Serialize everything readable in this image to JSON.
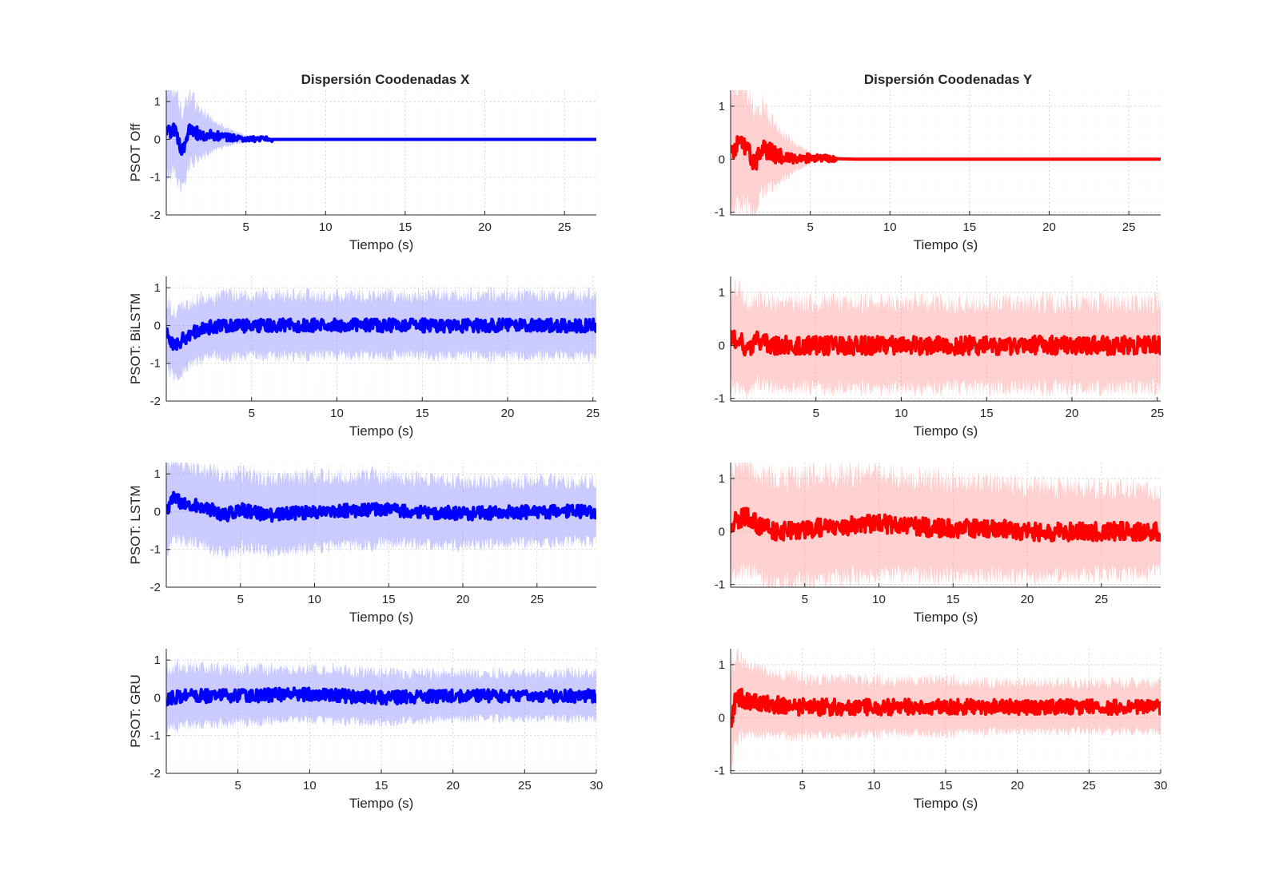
{
  "figure": {
    "column_titles": [
      "Dispersión Coodenadas X",
      "Dispersión Coodenadas Y"
    ],
    "colors": {
      "x": "#0000ff",
      "y": "#ff0000",
      "band_x": "#8c8cff",
      "band_y": "#ff9a9a"
    }
  },
  "chart_data": [
    {
      "type": "line",
      "title": "Dispersión Coodenadas X",
      "xlabel": "Tiempo (s)",
      "ylabel": "PSOT Off",
      "xlim": [
        0,
        27
      ],
      "ylim": [
        -2,
        1.3
      ],
      "xticks": [
        5,
        10,
        15,
        20,
        25
      ],
      "yticks": [
        -2,
        -1,
        0,
        1
      ],
      "grid": "on (major and minor)",
      "color": "#0000ff",
      "series": [
        {
          "role": "mean",
          "x": [
            0,
            0.5,
            1,
            1.5,
            2,
            3,
            4,
            5,
            6,
            8,
            27
          ],
          "y": [
            0.2,
            0.25,
            -0.3,
            0.3,
            0.15,
            0.1,
            0.05,
            0.02,
            0,
            0,
            0
          ]
        },
        {
          "role": "band_halfwidth",
          "x": [
            0,
            1,
            2,
            3,
            4,
            5,
            6,
            8,
            27
          ],
          "y": [
            1.2,
            1.1,
            0.7,
            0.4,
            0.2,
            0.08,
            0.03,
            0,
            0
          ]
        }
      ]
    },
    {
      "type": "line",
      "title": "Dispersión Coodenadas Y",
      "xlabel": "Tiempo (s)",
      "ylabel": "",
      "xlim": [
        0,
        27
      ],
      "ylim": [
        -1.05,
        1.3
      ],
      "xticks": [
        5,
        10,
        15,
        20,
        25
      ],
      "yticks": [
        -1,
        0,
        1
      ],
      "grid": "on (major and minor)",
      "color": "#ff0000",
      "series": [
        {
          "role": "mean",
          "x": [
            0,
            0.5,
            1,
            1.5,
            2,
            3,
            4,
            5,
            8,
            27
          ],
          "y": [
            0.1,
            0.3,
            0.25,
            -0.1,
            0.2,
            0.05,
            0.03,
            0.02,
            0,
            0
          ]
        },
        {
          "role": "band_halfwidth",
          "x": [
            0,
            1,
            2,
            3,
            4,
            5,
            6,
            8,
            27
          ],
          "y": [
            1.2,
            1.1,
            0.8,
            0.5,
            0.25,
            0.1,
            0.03,
            0,
            0
          ]
        }
      ]
    },
    {
      "type": "line",
      "xlabel": "Tiempo (s)",
      "ylabel": "PSOT: BiLSTM",
      "xlim": [
        0,
        25.2
      ],
      "ylim": [
        -2,
        1.3
      ],
      "xticks": [
        5,
        10,
        15,
        20,
        25
      ],
      "yticks": [
        -2,
        -1,
        0,
        1
      ],
      "grid": "on (major and minor)",
      "color": "#0000ff",
      "series": [
        {
          "role": "mean",
          "x": [
            0,
            0.5,
            1,
            1.5,
            2,
            2.5,
            3,
            5,
            10,
            15,
            20,
            25.2
          ],
          "y": [
            -0.2,
            -0.55,
            -0.35,
            -0.2,
            -0.1,
            -0.05,
            -0.02,
            0,
            0,
            0,
            0,
            0
          ]
        },
        {
          "role": "band_halfwidth",
          "x": [
            0,
            1,
            2,
            3,
            5,
            10,
            15,
            20,
            25.2
          ],
          "y": [
            0.9,
            0.85,
            0.8,
            0.8,
            0.8,
            0.8,
            0.8,
            0.8,
            0.8
          ]
        }
      ]
    },
    {
      "type": "line",
      "xlabel": "Tiempo (s)",
      "ylabel": "",
      "xlim": [
        0,
        25.2
      ],
      "ylim": [
        -1.05,
        1.3
      ],
      "xticks": [
        5,
        10,
        15,
        20,
        25
      ],
      "yticks": [
        -1,
        0,
        1
      ],
      "grid": "on (major and minor)",
      "color": "#ff0000",
      "series": [
        {
          "role": "mean",
          "x": [
            0,
            0.5,
            1,
            1.5,
            2,
            2.5,
            3,
            5,
            10,
            15,
            20,
            25.2
          ],
          "y": [
            0.1,
            0.15,
            -0.1,
            0.1,
            0.05,
            0,
            0,
            0,
            0,
            0,
            0,
            0
          ]
        },
        {
          "role": "band_halfwidth",
          "x": [
            0,
            1,
            2,
            3,
            5,
            10,
            15,
            20,
            25.2
          ],
          "y": [
            0.9,
            0.85,
            0.8,
            0.8,
            0.8,
            0.8,
            0.8,
            0.8,
            0.8
          ]
        }
      ]
    },
    {
      "type": "line",
      "xlabel": "Tiempo (s)",
      "ylabel": "PSOT: LSTM",
      "xlim": [
        0,
        29
      ],
      "ylim": [
        -2,
        1.3
      ],
      "xticks": [
        5,
        10,
        15,
        20,
        25
      ],
      "yticks": [
        -2,
        -1,
        0,
        1
      ],
      "grid": "on (major and minor)",
      "color": "#0000ff",
      "series": [
        {
          "role": "mean",
          "x": [
            0,
            0.5,
            1,
            2,
            3,
            4,
            5,
            7,
            10,
            15,
            20,
            25,
            29
          ],
          "y": [
            -0.05,
            0.35,
            0.25,
            0.15,
            0.05,
            -0.1,
            0.05,
            -0.1,
            0,
            0.05,
            -0.05,
            0,
            0
          ]
        },
        {
          "role": "band_halfwidth",
          "x": [
            0,
            1,
            2,
            5,
            10,
            15,
            20,
            25,
            29
          ],
          "y": [
            1.0,
            1.0,
            1.0,
            1.0,
            0.95,
            0.9,
            0.85,
            0.8,
            0.8
          ]
        }
      ]
    },
    {
      "type": "line",
      "xlabel": "Tiempo (s)",
      "ylabel": "",
      "xlim": [
        0,
        29
      ],
      "ylim": [
        -1.05,
        1.3
      ],
      "xticks": [
        5,
        10,
        15,
        20,
        25
      ],
      "yticks": [
        -1,
        0,
        1
      ],
      "grid": "on (major and minor)",
      "color": "#ff0000",
      "series": [
        {
          "role": "mean",
          "x": [
            0,
            1,
            2,
            3,
            5,
            10,
            12,
            15,
            18,
            20,
            25,
            29
          ],
          "y": [
            0.15,
            0.3,
            0.1,
            0,
            0.05,
            0.15,
            0.1,
            0.05,
            0.05,
            0,
            0,
            0
          ]
        },
        {
          "role": "band_halfwidth",
          "x": [
            0,
            1,
            2,
            5,
            10,
            15,
            20,
            25,
            29
          ],
          "y": [
            1.0,
            1.0,
            1.0,
            1.0,
            0.95,
            0.9,
            0.85,
            0.8,
            0.75
          ]
        }
      ]
    },
    {
      "type": "line",
      "xlabel": "Tiempo (s)",
      "ylabel": "PSOT: GRU",
      "xlim": [
        0,
        30
      ],
      "ylim": [
        -2,
        1.3
      ],
      "xticks": [
        5,
        10,
        15,
        20,
        25,
        30
      ],
      "yticks": [
        -2,
        -1,
        0,
        1
      ],
      "grid": "on (major and minor)",
      "color": "#0000ff",
      "series": [
        {
          "role": "mean",
          "x": [
            0,
            1,
            2,
            5,
            10,
            15,
            20,
            25,
            30
          ],
          "y": [
            -0.05,
            0.05,
            0.05,
            0.05,
            0.1,
            0,
            0.05,
            0.05,
            0.05
          ]
        },
        {
          "role": "band_halfwidth",
          "x": [
            0,
            1,
            2,
            5,
            10,
            15,
            20,
            25,
            30
          ],
          "y": [
            0.8,
            0.8,
            0.75,
            0.7,
            0.7,
            0.65,
            0.6,
            0.6,
            0.6
          ]
        }
      ]
    },
    {
      "type": "line",
      "xlabel": "Tiempo (s)",
      "ylabel": "",
      "xlim": [
        0,
        30
      ],
      "ylim": [
        -1.05,
        1.3
      ],
      "xticks": [
        5,
        10,
        15,
        20,
        25,
        30
      ],
      "yticks": [
        -1,
        0,
        1
      ],
      "grid": "on (major and minor)",
      "color": "#ff0000",
      "series": [
        {
          "role": "mean",
          "x": [
            0,
            0.3,
            0.5,
            1,
            2,
            3,
            5,
            10,
            15,
            20,
            25,
            30
          ],
          "y": [
            -0.1,
            0.3,
            0.4,
            0.35,
            0.3,
            0.25,
            0.2,
            0.2,
            0.2,
            0.2,
            0.2,
            0.2
          ]
        },
        {
          "role": "band_halfwidth",
          "x": [
            0,
            1,
            2,
            5,
            10,
            15,
            20,
            25,
            30
          ],
          "y": [
            0.9,
            0.7,
            0.6,
            0.55,
            0.5,
            0.5,
            0.45,
            0.45,
            0.45
          ]
        }
      ]
    }
  ]
}
